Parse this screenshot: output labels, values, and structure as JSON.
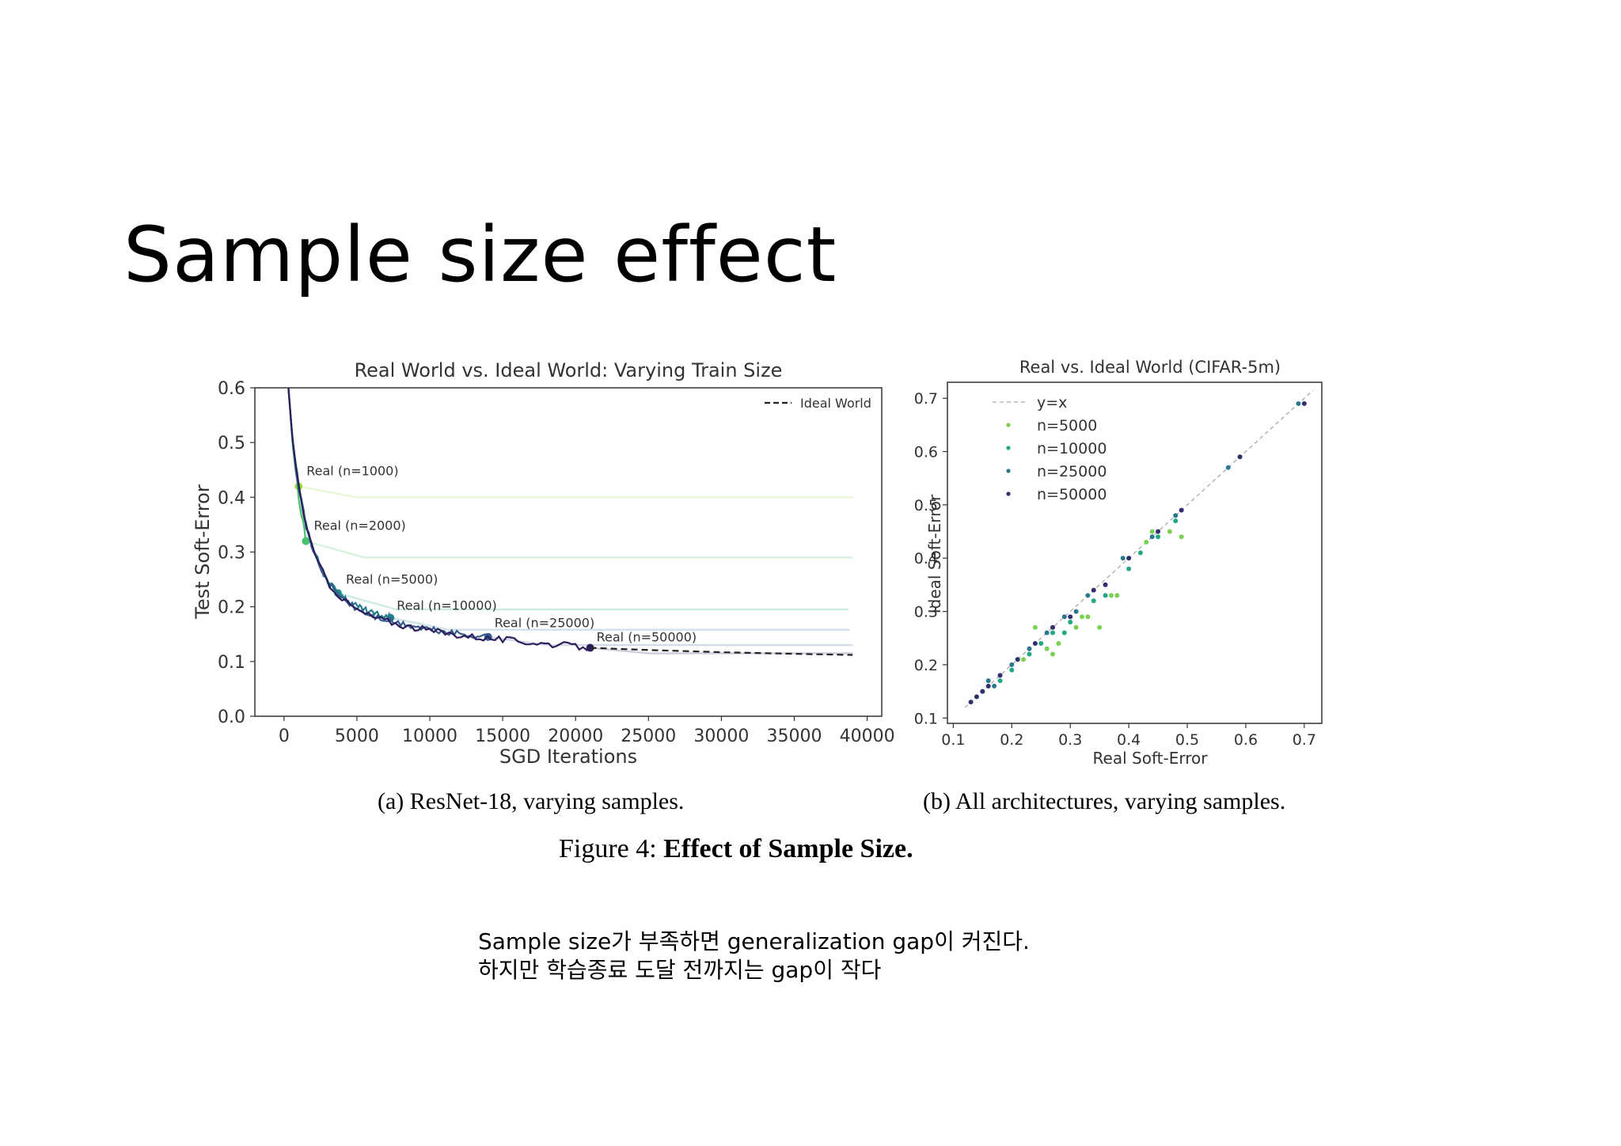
{
  "slide": {
    "title": "Sample size effect",
    "note_lines": [
      "Sample size가 부족하면 generalization gap이 커진다.",
      "하지만 학습종료 도달 전까지는 gap이 작다"
    ]
  },
  "figure": {
    "caption_prefix": "Figure 4:",
    "caption_bold": "Effect of Sample Size.",
    "subcaption_a": "(a) ResNet-18, varying samples.",
    "subcaption_b": "(b) All architectures, varying samples."
  },
  "chart_data": [
    {
      "type": "line",
      "title": "Real World vs. Ideal World: Varying Train Size",
      "xlabel": "SGD Iterations",
      "ylabel": "Test Soft-Error",
      "xlim": [
        -2000,
        41000
      ],
      "ylim": [
        0.0,
        0.6
      ],
      "xticks": [
        0,
        5000,
        10000,
        15000,
        20000,
        25000,
        30000,
        35000,
        40000
      ],
      "yticks": [
        0.0,
        0.1,
        0.2,
        0.3,
        0.4,
        0.5,
        0.6
      ],
      "legend": {
        "position": "top-right",
        "entries": [
          "Ideal World"
        ]
      },
      "ideal_world": {
        "name": "Ideal World",
        "x": [
          300,
          600,
          1000,
          1500,
          2000,
          3000,
          4000,
          5000,
          6000,
          8000,
          10000,
          12000,
          15000,
          18000,
          21000,
          25000,
          30000,
          35000,
          39000
        ],
        "y": [
          0.6,
          0.5,
          0.42,
          0.35,
          0.3,
          0.245,
          0.215,
          0.195,
          0.183,
          0.168,
          0.158,
          0.15,
          0.142,
          0.135,
          0.128,
          0.124,
          0.12,
          0.117,
          0.115
        ]
      },
      "series": [
        {
          "name": "Real (n=1000)",
          "color": "#a0da39",
          "stop_x": 1000,
          "stop_y": 0.42,
          "plateau": 0.4
        },
        {
          "name": "Real (n=2000)",
          "color": "#4ac16d",
          "stop_x": 1500,
          "stop_y": 0.32,
          "plateau": 0.29
        },
        {
          "name": "Real (n=5000)",
          "color": "#1fa187",
          "stop_x": 3700,
          "stop_y": 0.225,
          "plateau": 0.195
        },
        {
          "name": "Real (n=10000)",
          "color": "#277f8e",
          "stop_x": 7300,
          "stop_y": 0.18,
          "plateau": 0.158
        },
        {
          "name": "Real (n=25000)",
          "color": "#365c8d",
          "stop_x": 14000,
          "stop_y": 0.145,
          "plateau": 0.13
        },
        {
          "name": "Real (n=50000)",
          "color": "#2e1e5e",
          "stop_x": 21000,
          "stop_y": 0.125,
          "plateau": 0.115
        }
      ]
    },
    {
      "type": "scatter",
      "title": "Real vs. Ideal World (CIFAR-5m)",
      "xlabel": "Real Soft-Error",
      "ylabel": "Ideal Soft-Error",
      "xlim": [
        0.09,
        0.73
      ],
      "ylim": [
        0.09,
        0.73
      ],
      "xticks": [
        0.1,
        0.2,
        0.3,
        0.4,
        0.5,
        0.6,
        0.7
      ],
      "yticks": [
        0.1,
        0.2,
        0.3,
        0.4,
        0.5,
        0.6,
        0.7
      ],
      "legend": {
        "position": "top-left",
        "entries": [
          "y=x",
          "n=5000",
          "n=10000",
          "n=25000",
          "n=50000"
        ]
      },
      "series": [
        {
          "name": "n=5000",
          "color": "#7ad151",
          "points": [
            [
              0.24,
              0.27
            ],
            [
              0.26,
              0.23
            ],
            [
              0.27,
              0.22
            ],
            [
              0.31,
              0.27
            ],
            [
              0.32,
              0.29
            ],
            [
              0.33,
              0.29
            ],
            [
              0.35,
              0.27
            ],
            [
              0.37,
              0.33
            ],
            [
              0.44,
              0.45
            ],
            [
              0.47,
              0.45
            ],
            [
              0.49,
              0.44
            ],
            [
              0.43,
              0.43
            ],
            [
              0.22,
              0.21
            ],
            [
              0.28,
              0.24
            ],
            [
              0.38,
              0.33
            ]
          ]
        },
        {
          "name": "n=10000",
          "color": "#22a884",
          "points": [
            [
              0.18,
              0.17
            ],
            [
              0.21,
              0.21
            ],
            [
              0.23,
              0.22
            ],
            [
              0.25,
              0.24
            ],
            [
              0.29,
              0.26
            ],
            [
              0.3,
              0.28
            ],
            [
              0.34,
              0.32
            ],
            [
              0.4,
              0.38
            ],
            [
              0.45,
              0.44
            ],
            [
              0.48,
              0.47
            ],
            [
              0.36,
              0.33
            ],
            [
              0.2,
              0.19
            ],
            [
              0.27,
              0.26
            ],
            [
              0.42,
              0.41
            ]
          ]
        },
        {
          "name": "n=25000",
          "color": "#2a788e",
          "points": [
            [
              0.15,
              0.15
            ],
            [
              0.17,
              0.16
            ],
            [
              0.2,
              0.2
            ],
            [
              0.23,
              0.23
            ],
            [
              0.26,
              0.26
            ],
            [
              0.29,
              0.29
            ],
            [
              0.33,
              0.33
            ],
            [
              0.39,
              0.4
            ],
            [
              0.44,
              0.44
            ],
            [
              0.48,
              0.48
            ],
            [
              0.57,
              0.57
            ],
            [
              0.69,
              0.69
            ],
            [
              0.16,
              0.17
            ],
            [
              0.31,
              0.3
            ]
          ]
        },
        {
          "name": "n=50000",
          "color": "#31306e",
          "points": [
            [
              0.13,
              0.13
            ],
            [
              0.14,
              0.14
            ],
            [
              0.16,
              0.16
            ],
            [
              0.18,
              0.18
            ],
            [
              0.21,
              0.21
            ],
            [
              0.24,
              0.24
            ],
            [
              0.27,
              0.27
            ],
            [
              0.3,
              0.29
            ],
            [
              0.34,
              0.34
            ],
            [
              0.4,
              0.4
            ],
            [
              0.45,
              0.45
            ],
            [
              0.49,
              0.49
            ],
            [
              0.59,
              0.59
            ],
            [
              0.7,
              0.69
            ],
            [
              0.36,
              0.35
            ],
            [
              0.15,
              0.15
            ]
          ]
        }
      ]
    }
  ]
}
